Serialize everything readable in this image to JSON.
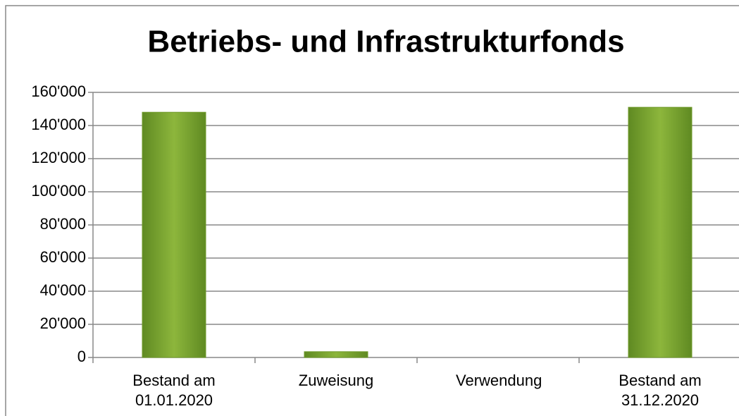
{
  "chart_data": {
    "type": "bar",
    "title": "Betriebs- und Infrastrukturfonds",
    "categories": [
      "Bestand am 01.01.2020",
      "Zuweisung",
      "Verwendung",
      "Bestand am 31.12.2020"
    ],
    "values": [
      148000,
      3500,
      0,
      151000
    ],
    "color": "#8db63c",
    "ylim": [
      0,
      160000
    ],
    "yticks": [
      0,
      {
        "value": 20000,
        "label": "20'000"
      },
      {
        "value": 40000,
        "label": "40'000"
      },
      {
        "value": 60000,
        "label": "60'000"
      },
      {
        "value": 80000,
        "label": "80'000"
      },
      {
        "value": 100000,
        "label": "100'000"
      },
      {
        "value": 120000,
        "label": "120'000"
      },
      {
        "value": 140000,
        "label": "140'000"
      },
      {
        "value": 160000,
        "label": "160'000"
      }
    ],
    "grid": true
  }
}
